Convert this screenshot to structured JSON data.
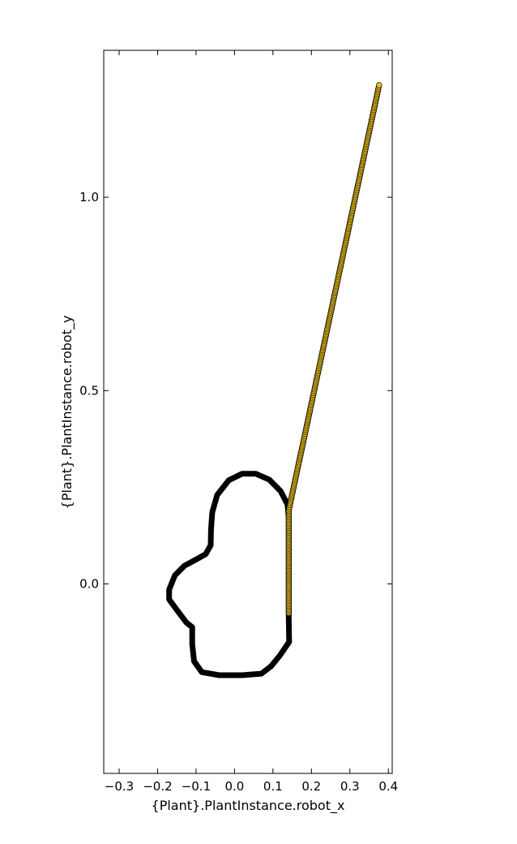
{
  "chart_data": {
    "type": "scatter",
    "title": "",
    "xlabel": "{Plant}.PlantInstance.robot_x",
    "ylabel": "{Plant}.PlantInstance.robot_y",
    "xlim": [
      -0.34,
      0.41
    ],
    "ylim": [
      -0.49,
      1.38
    ],
    "xticks": [
      -0.3,
      -0.2,
      -0.1,
      0.0,
      0.1,
      0.2,
      0.3,
      0.4
    ],
    "xtick_labels": [
      "−0.3",
      "−0.2",
      "−0.1",
      "0.0",
      "0.1",
      "0.2",
      "0.3",
      "0.4"
    ],
    "yticks": [
      0.0,
      0.5,
      1.0
    ],
    "ytick_labels": [
      "0.0",
      "0.5",
      "1.0"
    ],
    "grid": false,
    "series": [
      {
        "style": "line",
        "color": "#000000",
        "points": [
          [
            0.141,
            -0.085
          ],
          [
            0.142,
            -0.15
          ],
          [
            0.118,
            -0.185
          ],
          [
            0.095,
            -0.213
          ],
          [
            0.07,
            -0.232
          ],
          [
            0.02,
            -0.236
          ],
          [
            -0.04,
            -0.236
          ],
          [
            -0.085,
            -0.228
          ],
          [
            -0.105,
            -0.2
          ],
          [
            -0.11,
            -0.155
          ],
          [
            -0.11,
            -0.112
          ],
          [
            -0.125,
            -0.1
          ],
          [
            -0.15,
            -0.067
          ],
          [
            -0.17,
            -0.04
          ],
          [
            -0.17,
            -0.015
          ],
          [
            -0.155,
            0.022
          ],
          [
            -0.13,
            0.047
          ],
          [
            -0.1,
            0.063
          ],
          [
            -0.075,
            0.077
          ],
          [
            -0.062,
            0.1
          ],
          [
            -0.061,
            0.14
          ],
          [
            -0.058,
            0.185
          ],
          [
            -0.045,
            0.23
          ],
          [
            -0.015,
            0.268
          ],
          [
            0.02,
            0.285
          ],
          [
            0.055,
            0.285
          ],
          [
            0.09,
            0.27
          ],
          [
            0.12,
            0.24
          ],
          [
            0.138,
            0.205
          ],
          [
            0.141,
            0.17
          ],
          [
            0.141,
            0.1
          ],
          [
            0.141,
            0.0
          ],
          [
            0.141,
            -0.085
          ]
        ]
      },
      {
        "style": "markers",
        "color": "#f0c419",
        "edgecolor": "#000000",
        "segments": [
          {
            "from": [
              0.141,
              -0.075
            ],
            "to": [
              0.141,
              0.19
            ],
            "count": 60
          },
          {
            "from": [
              0.141,
              0.19
            ],
            "to": [
              0.376,
              1.29
            ],
            "count": 240
          }
        ]
      }
    ]
  }
}
